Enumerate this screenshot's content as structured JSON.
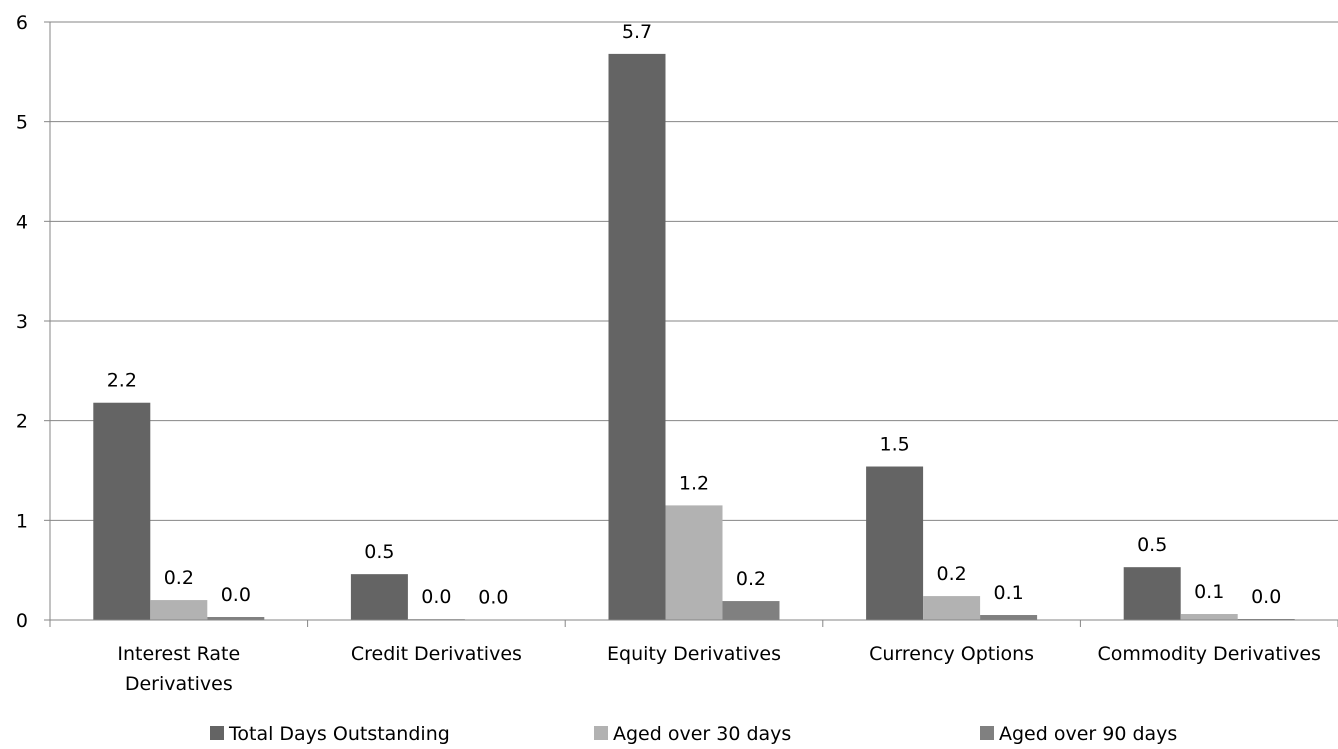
{
  "chart_data": {
    "type": "bar",
    "categories": [
      "Interest Rate Derivatives",
      "Credit Derivatives",
      "Equity Derivatives",
      "Currency Options",
      "Commodity Derivatives"
    ],
    "category_lines": [
      [
        "Interest Rate",
        "Derivatives"
      ],
      [
        "Credit Derivatives"
      ],
      [
        "Equity Derivatives"
      ],
      [
        "Currency Options"
      ],
      [
        "Commodity Derivatives"
      ]
    ],
    "series": [
      {
        "name": "Total Days Outstanding",
        "color": "#646464",
        "values": [
          2.18,
          0.46,
          5.68,
          1.54,
          0.53
        ],
        "labels": [
          "2.2",
          "0.5",
          "5.7",
          "1.5",
          "0.5"
        ]
      },
      {
        "name": "Aged over 30 days",
        "color": "#b2b2b2",
        "values": [
          0.2,
          0.01,
          1.15,
          0.24,
          0.06
        ],
        "labels": [
          "0.2",
          "0.0",
          "1.2",
          "0.2",
          "0.1"
        ]
      },
      {
        "name": "Aged over 90 days",
        "color": "#808080",
        "values": [
          0.03,
          0.005,
          0.19,
          0.05,
          0.01
        ],
        "labels": [
          "0.0",
          "0.0",
          "0.2",
          "0.1",
          "0.0"
        ]
      }
    ],
    "yticks": [
      "0",
      "1",
      "2",
      "3",
      "4",
      "5",
      "6"
    ],
    "ylim": [
      0,
      6
    ],
    "grid": true,
    "legend_position": "bottom"
  }
}
